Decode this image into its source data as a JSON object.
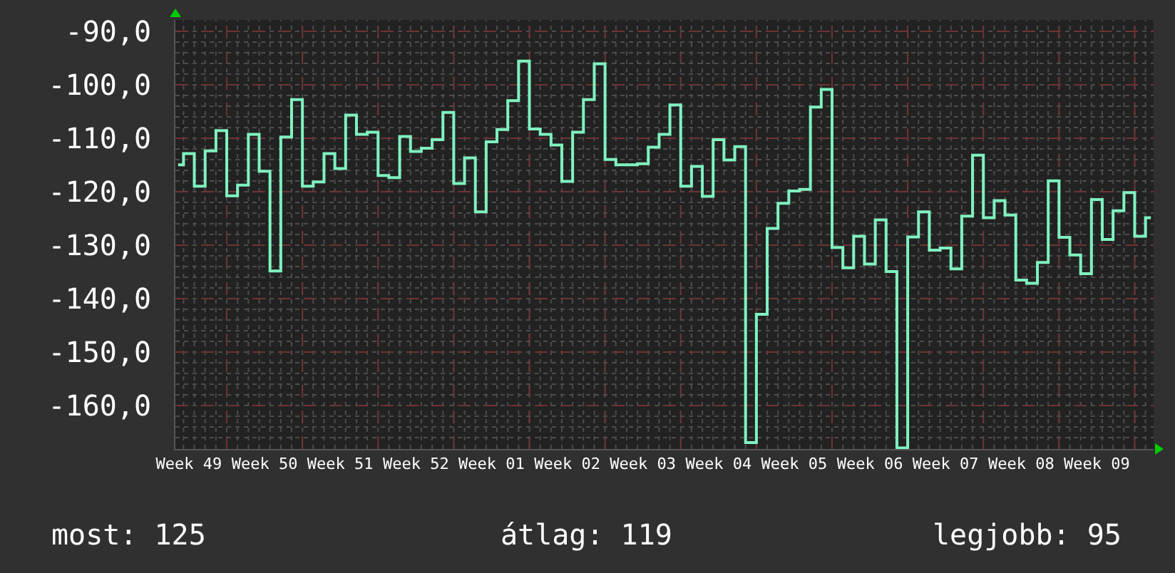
{
  "chart_data": {
    "type": "step",
    "categories": [
      null,
      "Week 49",
      null,
      null,
      null,
      null,
      null,
      null,
      "Week 50",
      null,
      null,
      null,
      null,
      null,
      null,
      "Week 51",
      null,
      null,
      null,
      null,
      null,
      null,
      "Week 52",
      null,
      null,
      null,
      null,
      null,
      null,
      "Week 01",
      null,
      null,
      null,
      null,
      null,
      null,
      "Week 02",
      null,
      null,
      null,
      null,
      null,
      null,
      "Week 03",
      null,
      null,
      null,
      null,
      null,
      null,
      "Week 04",
      null,
      null,
      null,
      null,
      null,
      null,
      "Week 05",
      null,
      null,
      null,
      null,
      null,
      null,
      "Week 06",
      null,
      null,
      null,
      null,
      null,
      null,
      "Week 07",
      null,
      null,
      null,
      null,
      null,
      null,
      "Week 08",
      null,
      null,
      null,
      null,
      null,
      null,
      "Week 09",
      null,
      null,
      null,
      null,
      null
    ],
    "values": [
      -115.0,
      -112.9,
      -119.0,
      -112.4,
      -108.6,
      -120.8,
      -118.8,
      -109.3,
      -116.2,
      -134.9,
      -109.8,
      -102.8,
      -119.0,
      -118.2,
      -112.9,
      -115.7,
      -105.7,
      -109.3,
      -108.9,
      -117.0,
      -117.4,
      -109.7,
      -112.5,
      -111.9,
      -110.3,
      -105.2,
      -118.5,
      -113.7,
      -123.8,
      -110.7,
      -108.4,
      -103.0,
      -95.6,
      -108.3,
      -109.3,
      -111.3,
      -118.1,
      -108.9,
      -102.8,
      -96.1,
      -114.0,
      -115.0,
      -115.0,
      -114.8,
      -111.7,
      -109.3,
      -103.8,
      -119.0,
      -115.3,
      -120.9,
      -110.3,
      -114.1,
      -111.6,
      -167.0,
      -143.0,
      -126.9,
      -122.2,
      -119.9,
      -119.6,
      -104.2,
      -100.9,
      -130.5,
      -134.3,
      -128.4,
      -133.6,
      -125.3,
      -135.0,
      -168.0,
      -128.5,
      -123.8,
      -131.0,
      -130.6,
      -134.5,
      -124.6,
      -113.2,
      -124.9,
      -121.7,
      -124.4,
      -136.6,
      -137.2,
      -133.3,
      -118.0,
      -128.6,
      -131.9,
      -135.4,
      -121.5,
      -129.0,
      -123.6,
      -120.2,
      -128.4,
      -124.9
    ],
    "color": "#7ff2c0",
    "ylim": [
      -168.2,
      -87.9
    ],
    "yticks": [
      {
        "value": -90,
        "label": "-90,0"
      },
      {
        "value": -100,
        "label": "-100,0"
      },
      {
        "value": -110,
        "label": "-110,0"
      },
      {
        "value": -120,
        "label": "-120,0"
      },
      {
        "value": -130,
        "label": "-130,0"
      },
      {
        "value": -140,
        "label": "-140,0"
      },
      {
        "value": -150,
        "label": "-150,0"
      },
      {
        "value": -160,
        "label": "-160,0"
      }
    ],
    "grid": true,
    "annotations": [
      "most: 125",
      "átlag: 119",
      "legjobb: 95"
    ]
  }
}
